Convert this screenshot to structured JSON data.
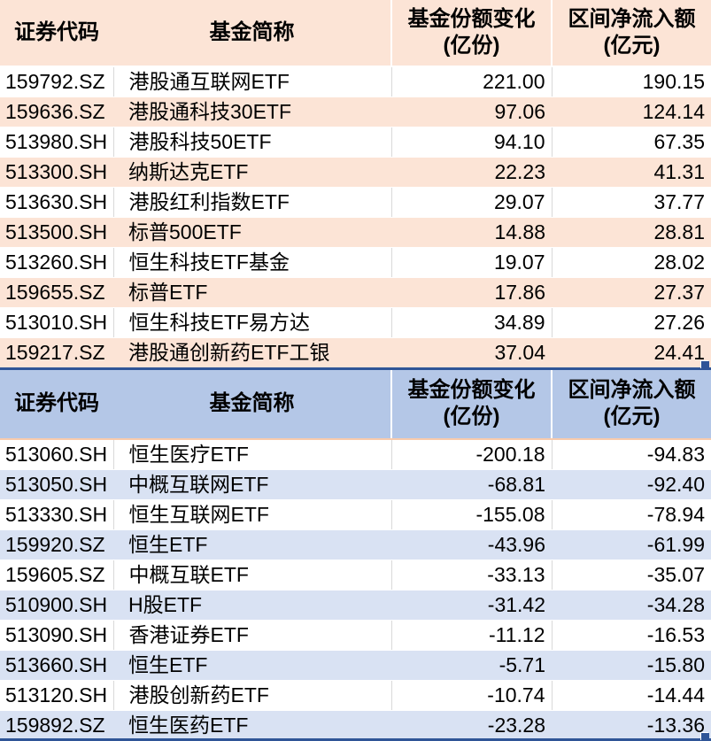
{
  "columns": {
    "code": "证券代码",
    "name": "基金简称",
    "share_change_line1": "基金份额变化",
    "share_change_line2": "(亿份)",
    "net_inflow_line1": "区间净流入额",
    "net_inflow_line2": "(亿元)"
  },
  "colors": {
    "inflow_header_bg": "#FCE4D6",
    "inflow_stripe_bg": "#FCE4D6",
    "outflow_header_bg": "#B4C7E7",
    "outflow_stripe_bg": "#D9E2F3",
    "header2_divider": "#F8CBAD",
    "grid_line": "#D9D9D9",
    "selection_border": "#2F5597"
  },
  "chart_data": [
    {
      "type": "table",
      "columns": [
        "证券代码",
        "基金简称",
        "基金份额变化(亿份)",
        "区间净流入额(亿元)"
      ],
      "rows": [
        [
          "159792.SZ",
          "港股通互联网ETF",
          "221.00",
          "190.15"
        ],
        [
          "159636.SZ",
          "港股通科技30ETF",
          "97.06",
          "124.14"
        ],
        [
          "513980.SH",
          "港股科技50ETF",
          "94.10",
          "67.35"
        ],
        [
          "513300.SH",
          "纳斯达克ETF",
          "22.23",
          "41.31"
        ],
        [
          "513630.SH",
          "港股红利指数ETF",
          "29.07",
          "37.77"
        ],
        [
          "513500.SH",
          "标普500ETF",
          "14.88",
          "28.81"
        ],
        [
          "513260.SH",
          "恒生科技ETF基金",
          "19.07",
          "28.02"
        ],
        [
          "159655.SZ",
          "标普ETF",
          "17.86",
          "27.37"
        ],
        [
          "513010.SH",
          "恒生科技ETF易方达",
          "34.89",
          "27.26"
        ],
        [
          "159217.SZ",
          "港股通创新药ETF工银",
          "37.04",
          "24.41"
        ]
      ]
    },
    {
      "type": "table",
      "columns": [
        "证券代码",
        "基金简称",
        "基金份额变化(亿份)",
        "区间净流入额(亿元)"
      ],
      "rows": [
        [
          "513060.SH",
          "恒生医疗ETF",
          "-200.18",
          "-94.83"
        ],
        [
          "513050.SH",
          "中概互联网ETF",
          "-68.81",
          "-92.40"
        ],
        [
          "513330.SH",
          "恒生互联网ETF",
          "-155.08",
          "-78.94"
        ],
        [
          "159920.SZ",
          "恒生ETF",
          "-43.96",
          "-61.99"
        ],
        [
          "159605.SZ",
          "中概互联ETF",
          "-33.13",
          "-35.07"
        ],
        [
          "510900.SH",
          "H股ETF",
          "-31.42",
          "-34.28"
        ],
        [
          "513090.SH",
          "香港证券ETF",
          "-11.12",
          "-16.53"
        ],
        [
          "513660.SH",
          "恒生ETF",
          "-5.71",
          "-15.80"
        ],
        [
          "513120.SH",
          "港股创新药ETF",
          "-10.74",
          "-14.44"
        ],
        [
          "159892.SZ",
          "恒生医药ETF",
          "-23.28",
          "-13.36"
        ]
      ]
    }
  ]
}
